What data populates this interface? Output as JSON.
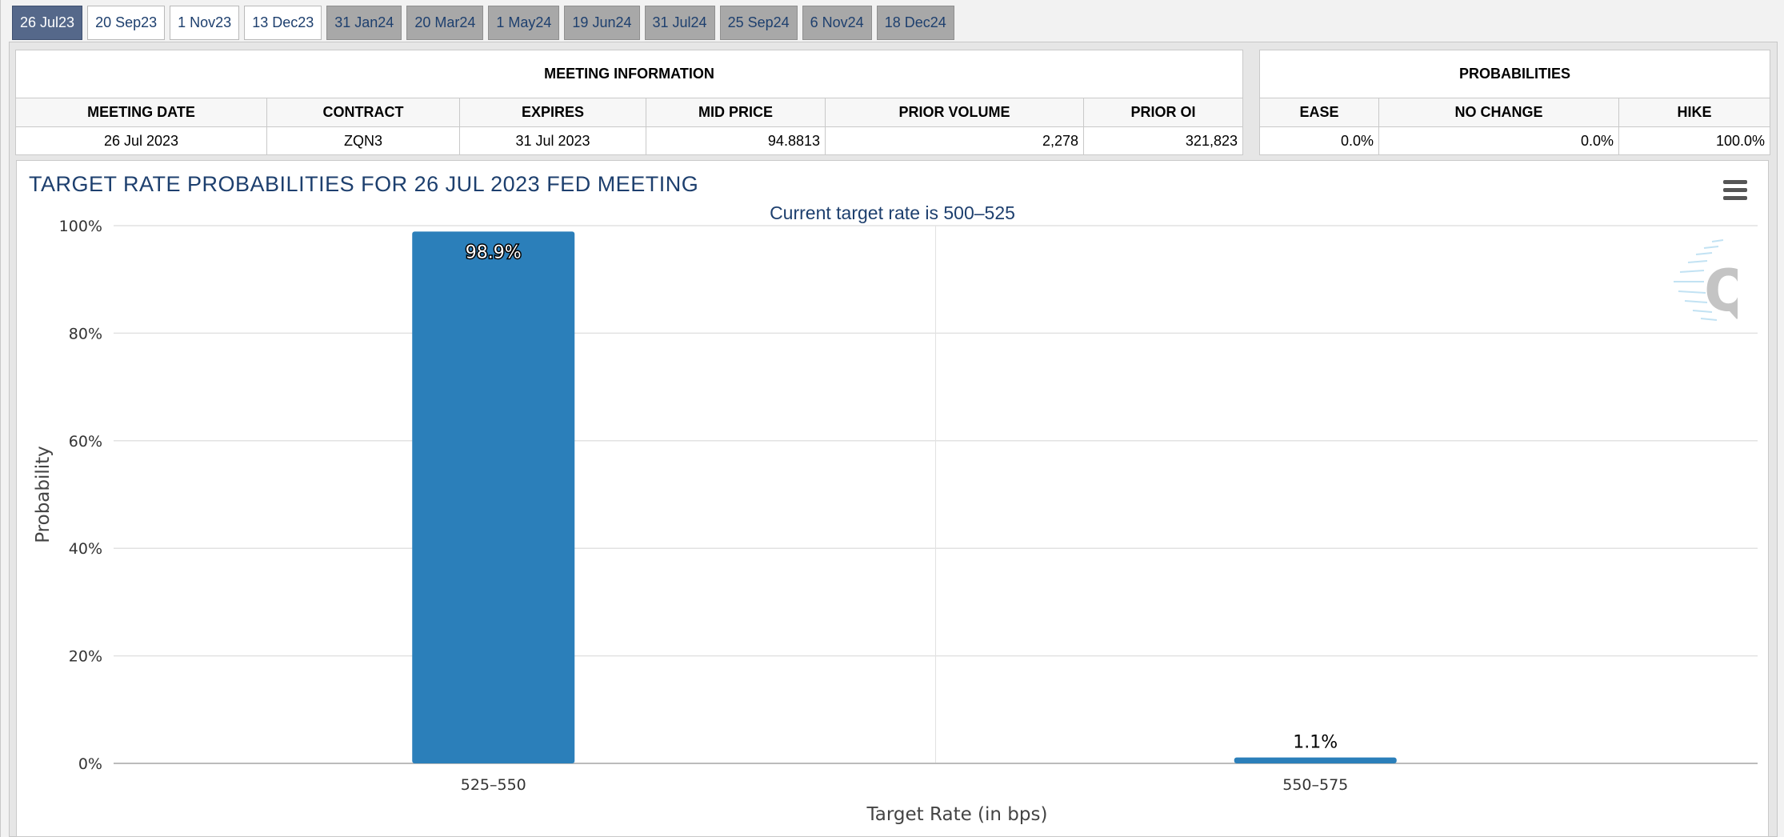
{
  "tabs": [
    {
      "label": "26 Jul23",
      "state": "active"
    },
    {
      "label": "20 Sep23",
      "state": "normal"
    },
    {
      "label": "1 Nov23",
      "state": "normal"
    },
    {
      "label": "13 Dec23",
      "state": "normal"
    },
    {
      "label": "31 Jan24",
      "state": "future"
    },
    {
      "label": "20 Mar24",
      "state": "future"
    },
    {
      "label": "1 May24",
      "state": "future"
    },
    {
      "label": "19 Jun24",
      "state": "future"
    },
    {
      "label": "31 Jul24",
      "state": "future"
    },
    {
      "label": "25 Sep24",
      "state": "future"
    },
    {
      "label": "6 Nov24",
      "state": "future"
    },
    {
      "label": "18 Dec24",
      "state": "future"
    }
  ],
  "meeting_info": {
    "title": "MEETING INFORMATION",
    "headers": [
      "MEETING DATE",
      "CONTRACT",
      "EXPIRES",
      "MID PRICE",
      "PRIOR VOLUME",
      "PRIOR OI"
    ],
    "values": [
      "26 Jul 2023",
      "ZQN3",
      "31 Jul 2023",
      "94.8813",
      "2,278",
      "321,823"
    ]
  },
  "probabilities": {
    "title": "PROBABILITIES",
    "headers": [
      "EASE",
      "NO CHANGE",
      "HIKE"
    ],
    "values": [
      "0.0%",
      "0.0%",
      "100.0%"
    ]
  },
  "chart_data": {
    "type": "bar",
    "title": "TARGET RATE PROBABILITIES FOR 26 JUL 2023 FED MEETING",
    "subtitle": "Current target rate is 500–525",
    "xlabel": "Target Rate (in bps)",
    "ylabel": "Probability",
    "categories": [
      "525–550",
      "550–575"
    ],
    "values": [
      98.9,
      1.1
    ],
    "data_labels": [
      "98.9%",
      "1.1%"
    ],
    "ylim": [
      0,
      100
    ],
    "yticks": [
      0,
      20,
      40,
      60,
      80,
      100
    ],
    "ytick_labels": [
      "0%",
      "20%",
      "40%",
      "60%",
      "80%",
      "100%"
    ],
    "grid": true,
    "bar_color": "#2b7fba"
  }
}
